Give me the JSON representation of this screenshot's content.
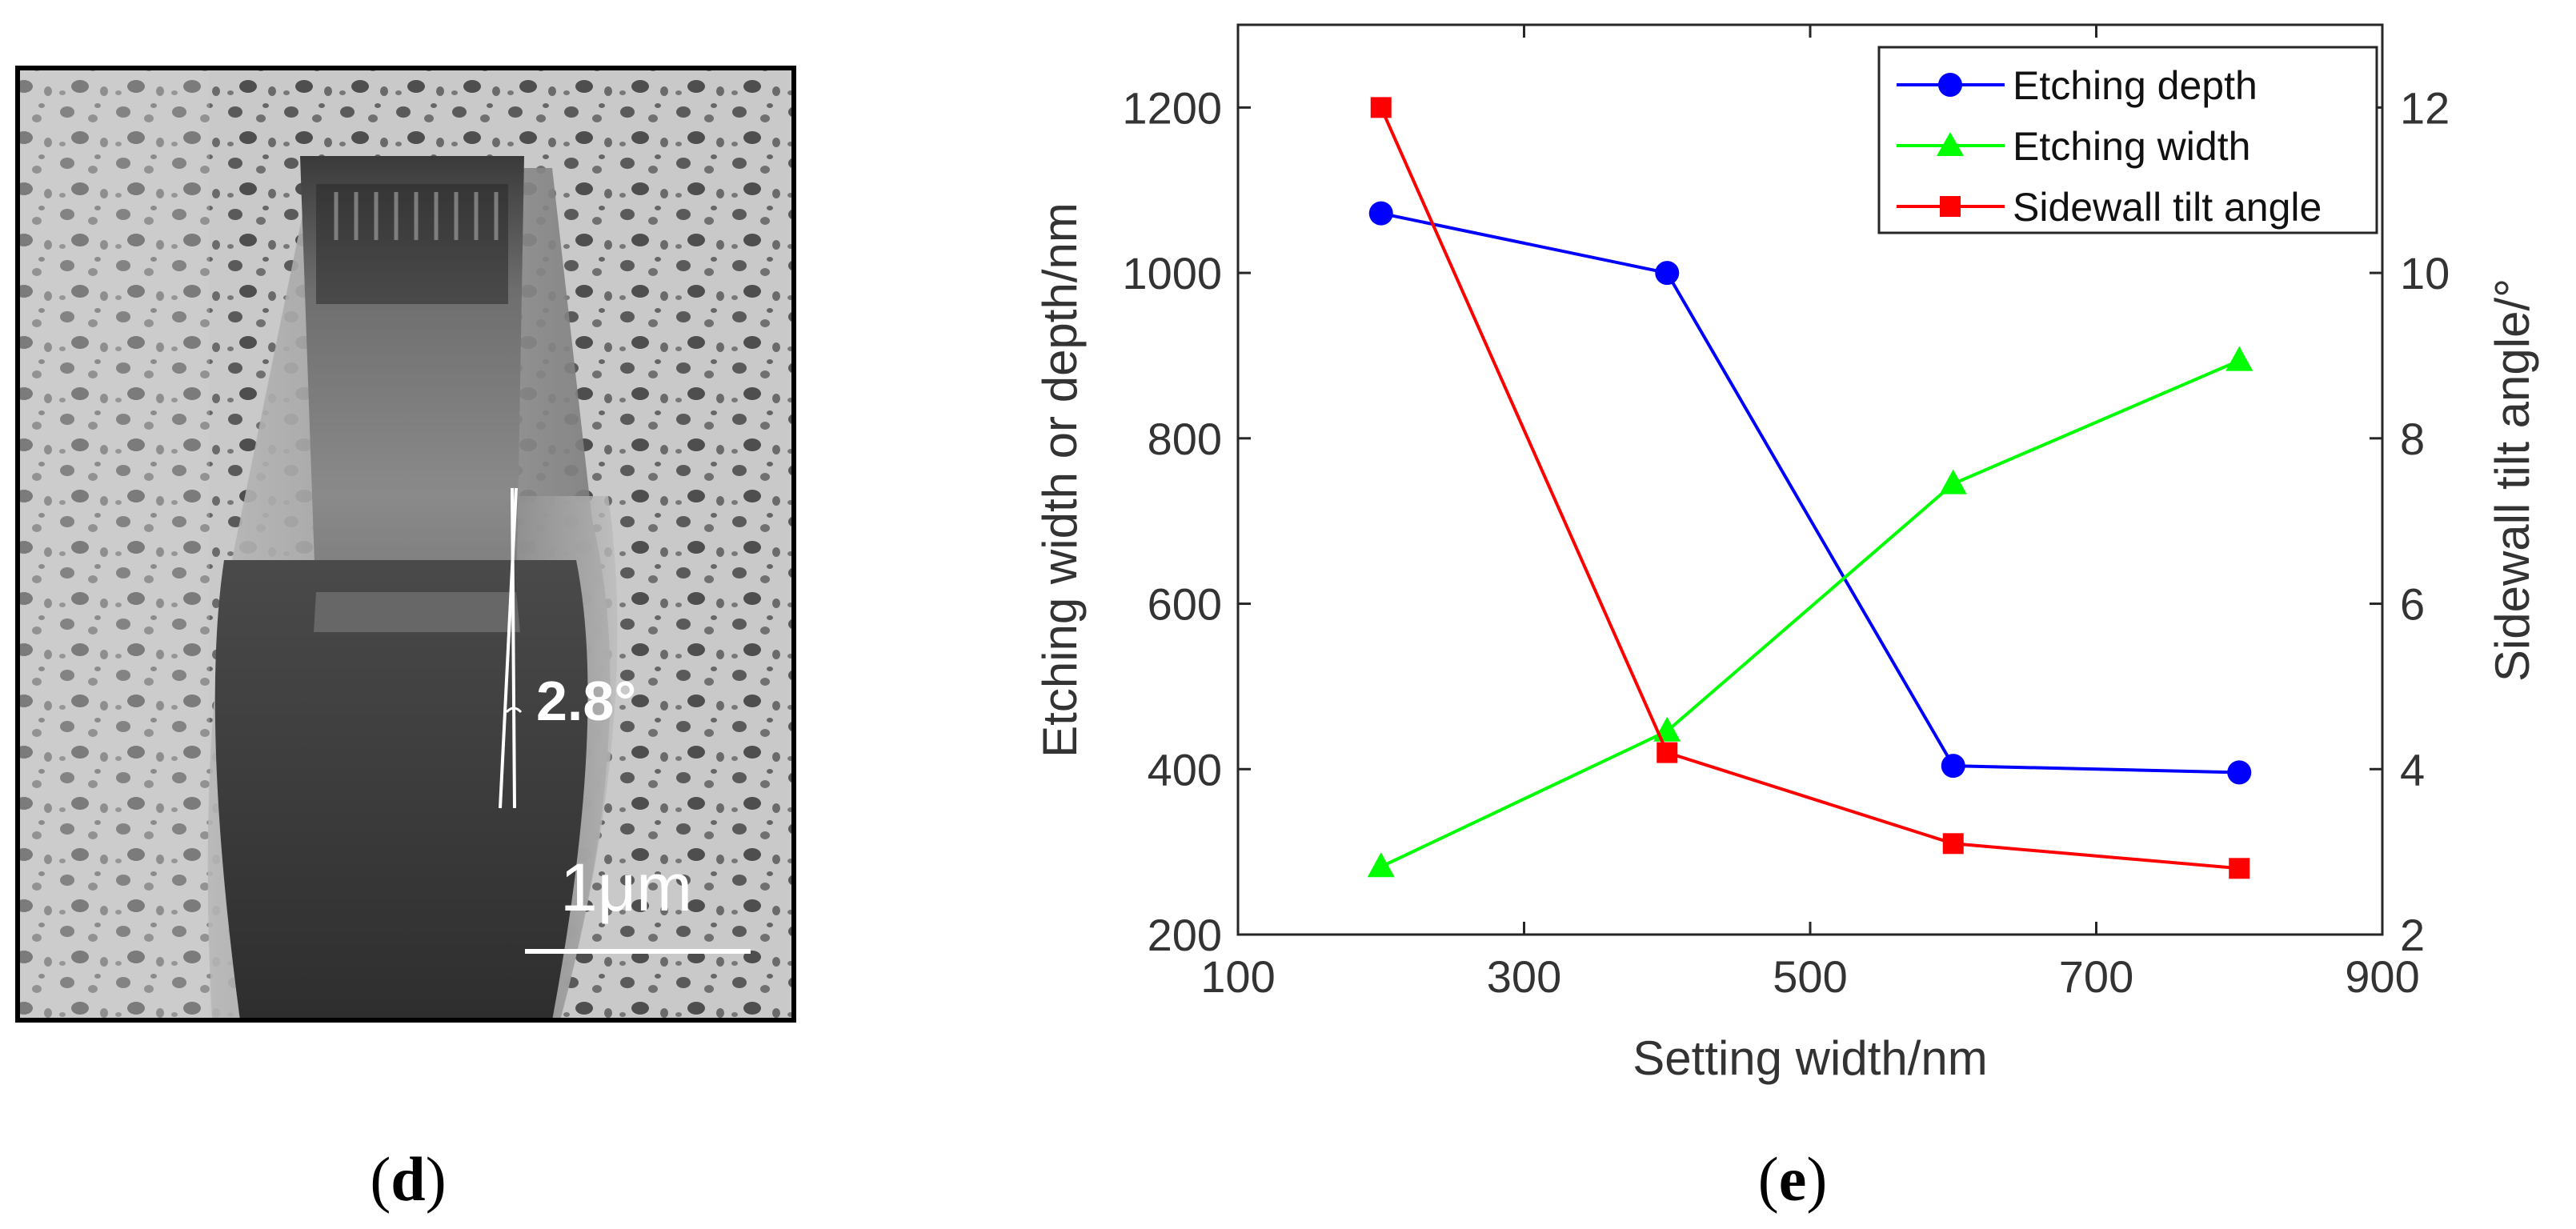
{
  "panel_d": {
    "label_open": "(",
    "label_letter": "d",
    "label_close": ")",
    "angle_annotation": "2.8°",
    "scale_bar_label": "1μm"
  },
  "panel_e": {
    "label_open": "(",
    "label_letter": "e",
    "label_close": ")"
  },
  "colors": {
    "depth": "#0000ff",
    "width": "#00ff00",
    "angle": "#ff0000",
    "axis": "#262626"
  },
  "chart_data": {
    "type": "line",
    "title": "",
    "xlabel": "Setting width/nm",
    "ylabel": "Etching width or depth/nm",
    "y2label": "Sidewall tilt angle/°",
    "xlim": [
      100,
      900
    ],
    "ylim": [
      200,
      1300
    ],
    "y2lim": [
      2,
      13
    ],
    "xticks": [
      100,
      300,
      500,
      700,
      900
    ],
    "yticks": [
      200,
      400,
      600,
      800,
      1000,
      1200
    ],
    "y2ticks": [
      2,
      4,
      6,
      8,
      10,
      12
    ],
    "x": [
      200,
      400,
      600,
      800
    ],
    "legend_position": "top-right",
    "series": [
      {
        "name": "Etching depth",
        "axis": "left",
        "marker": "circle",
        "color": "#0000ff",
        "values": [
          1072,
          1000,
          404,
          396
        ]
      },
      {
        "name": "Etching width",
        "axis": "left",
        "marker": "triangle",
        "color": "#00ff00",
        "values": [
          282,
          446,
          745,
          894
        ]
      },
      {
        "name": "Sidewall tilt angle",
        "axis": "right",
        "marker": "square",
        "color": "#ff0000",
        "values": [
          12.0,
          4.2,
          3.1,
          2.8
        ]
      }
    ]
  }
}
